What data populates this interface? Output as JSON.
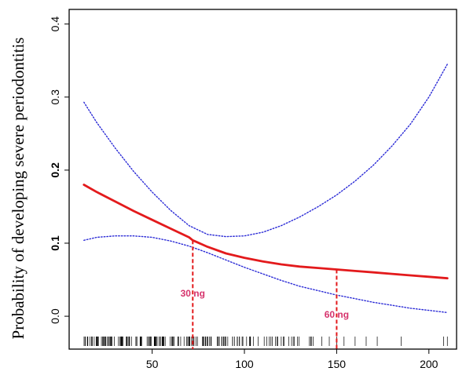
{
  "chart_data": {
    "type": "line",
    "title": "",
    "xlabel": "",
    "ylabel": "Probability of developing severe periodontitis",
    "xlim": [
      5,
      215
    ],
    "ylim": [
      -0.045,
      0.42
    ],
    "x_ticks": [
      50,
      100,
      150,
      200
    ],
    "y_ticks": [
      0.0,
      0.1,
      0.2,
      0.3,
      0.4
    ],
    "y_tick_labels": [
      "0.0",
      "0.1",
      "0.2",
      "0.3",
      "0.4"
    ],
    "y_tick_bold": [
      false,
      true,
      true,
      false,
      false
    ],
    "grid": false,
    "series": [
      {
        "role": "fit",
        "color": "#e31a1c",
        "style": "solid",
        "x": [
          13,
          20,
          30,
          40,
          50,
          60,
          70,
          72,
          80,
          90,
          100,
          110,
          120,
          130,
          140,
          150,
          160,
          170,
          180,
          190,
          200,
          210
        ],
        "y": [
          0.18,
          0.17,
          0.157,
          0.144,
          0.132,
          0.12,
          0.108,
          0.104,
          0.095,
          0.086,
          0.08,
          0.075,
          0.071,
          0.068,
          0.066,
          0.064,
          0.062,
          0.06,
          0.058,
          0.056,
          0.054,
          0.052
        ]
      },
      {
        "role": "upper-ci",
        "color": "#2b2bd6",
        "style": "dotted",
        "x": [
          13,
          20,
          30,
          40,
          50,
          60,
          70,
          80,
          90,
          100,
          110,
          120,
          130,
          140,
          150,
          160,
          170,
          180,
          190,
          200,
          210
        ],
        "y": [
          0.293,
          0.265,
          0.23,
          0.198,
          0.17,
          0.145,
          0.124,
          0.112,
          0.109,
          0.11,
          0.115,
          0.124,
          0.136,
          0.15,
          0.166,
          0.185,
          0.207,
          0.233,
          0.263,
          0.3,
          0.345
        ]
      },
      {
        "role": "lower-ci",
        "color": "#2b2bd6",
        "style": "dotted",
        "x": [
          13,
          20,
          30,
          40,
          50,
          60,
          70,
          80,
          90,
          100,
          110,
          120,
          130,
          140,
          150,
          160,
          170,
          180,
          190,
          200,
          210
        ],
        "y": [
          0.104,
          0.108,
          0.11,
          0.11,
          0.108,
          0.103,
          0.096,
          0.087,
          0.077,
          0.067,
          0.058,
          0.049,
          0.041,
          0.035,
          0.029,
          0.024,
          0.019,
          0.015,
          0.011,
          0.008,
          0.005
        ]
      }
    ],
    "annotations": [
      {
        "label": "30 ng",
        "x": 72,
        "y_top": 0.104,
        "color": "#e31a1c"
      },
      {
        "label": "60 ng",
        "x": 150,
        "y_top": 0.064,
        "color": "#e31a1c"
      }
    ],
    "rug": {
      "color": "#000000",
      "dense_range": [
        13,
        100
      ],
      "dense_count": 140,
      "medium_range": [
        100,
        140
      ],
      "medium_count": 28,
      "sparse_x": [
        142,
        146,
        150,
        154,
        160,
        166,
        172,
        185,
        208,
        210
      ]
    }
  }
}
